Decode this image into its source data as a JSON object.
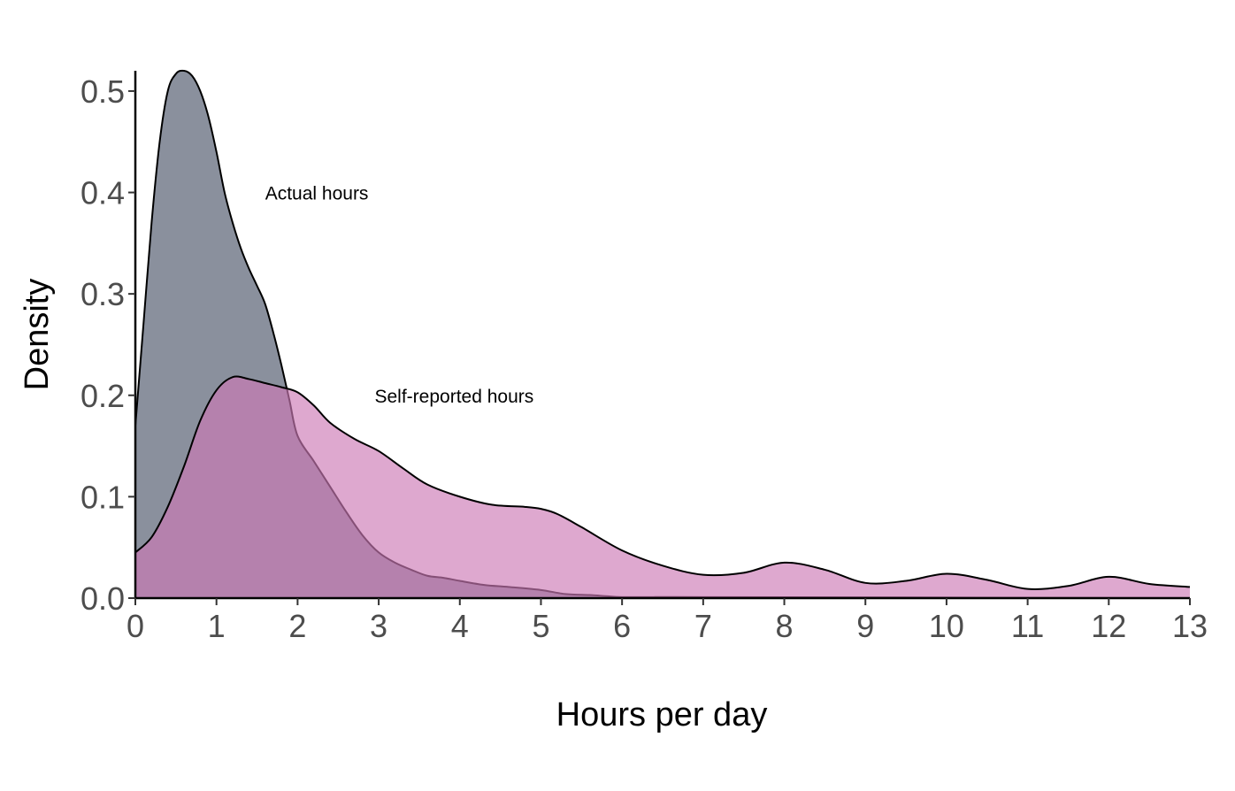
{
  "chart_data": {
    "type": "area",
    "xlabel": "Hours per day",
    "ylabel": "Density",
    "xlim": [
      0,
      13
    ],
    "ylim": [
      0,
      0.52
    ],
    "x_ticks": [
      "0",
      "1",
      "2",
      "3",
      "4",
      "5",
      "6",
      "7",
      "8",
      "9",
      "10",
      "11",
      "12",
      "13"
    ],
    "y_ticks": [
      "0.0",
      "0.1",
      "0.2",
      "0.3",
      "0.4",
      "0.5"
    ],
    "grid": false,
    "legend": "none",
    "series": [
      {
        "fill": "#707888",
        "opacity": 0.82,
        "x": [
          0,
          0.1,
          0.2,
          0.3,
          0.4,
          0.5,
          0.6,
          0.7,
          0.8,
          0.9,
          1.0,
          1.1,
          1.2,
          1.3,
          1.4,
          1.5,
          1.6,
          1.7,
          1.8,
          1.9,
          2.0,
          2.2,
          2.4,
          2.6,
          2.8,
          3.0,
          3.2,
          3.4,
          3.6,
          3.8,
          4.0,
          4.3,
          4.6,
          5.0,
          5.3,
          5.6,
          5.8,
          6.0,
          6.5,
          7.0,
          13.0
        ],
        "y": [
          0.17,
          0.27,
          0.37,
          0.45,
          0.5,
          0.517,
          0.52,
          0.515,
          0.5,
          0.475,
          0.44,
          0.4,
          0.37,
          0.345,
          0.325,
          0.308,
          0.29,
          0.262,
          0.23,
          0.195,
          0.16,
          0.135,
          0.11,
          0.085,
          0.062,
          0.045,
          0.035,
          0.028,
          0.022,
          0.02,
          0.017,
          0.013,
          0.011,
          0.008,
          0.004,
          0.003,
          0.002,
          0.001,
          0.001,
          0.001,
          0.0
        ]
      },
      {
        "fill": "#cc79b5",
        "opacity": 0.65,
        "x": [
          0,
          0.2,
          0.4,
          0.6,
          0.8,
          1.0,
          1.2,
          1.4,
          1.6,
          1.8,
          2.0,
          2.2,
          2.4,
          2.7,
          3.0,
          3.3,
          3.6,
          4.0,
          4.4,
          4.8,
          5.0,
          5.2,
          5.5,
          6.0,
          6.5,
          7.0,
          7.5,
          8.0,
          8.5,
          9.0,
          9.5,
          10.0,
          10.5,
          11.0,
          11.5,
          12.0,
          12.5,
          13.0
        ],
        "y": [
          0.045,
          0.06,
          0.09,
          0.13,
          0.175,
          0.205,
          0.218,
          0.216,
          0.212,
          0.208,
          0.203,
          0.19,
          0.173,
          0.157,
          0.145,
          0.128,
          0.112,
          0.1,
          0.092,
          0.09,
          0.088,
          0.083,
          0.07,
          0.047,
          0.032,
          0.023,
          0.025,
          0.035,
          0.028,
          0.015,
          0.017,
          0.024,
          0.018,
          0.009,
          0.012,
          0.021,
          0.014,
          0.011
        ]
      }
    ],
    "annotations": [
      {
        "text": "Actual hours",
        "x": 1.6,
        "y": 0.4
      },
      {
        "text": "Self-reported hours",
        "x": 2.95,
        "y": 0.2
      }
    ]
  }
}
